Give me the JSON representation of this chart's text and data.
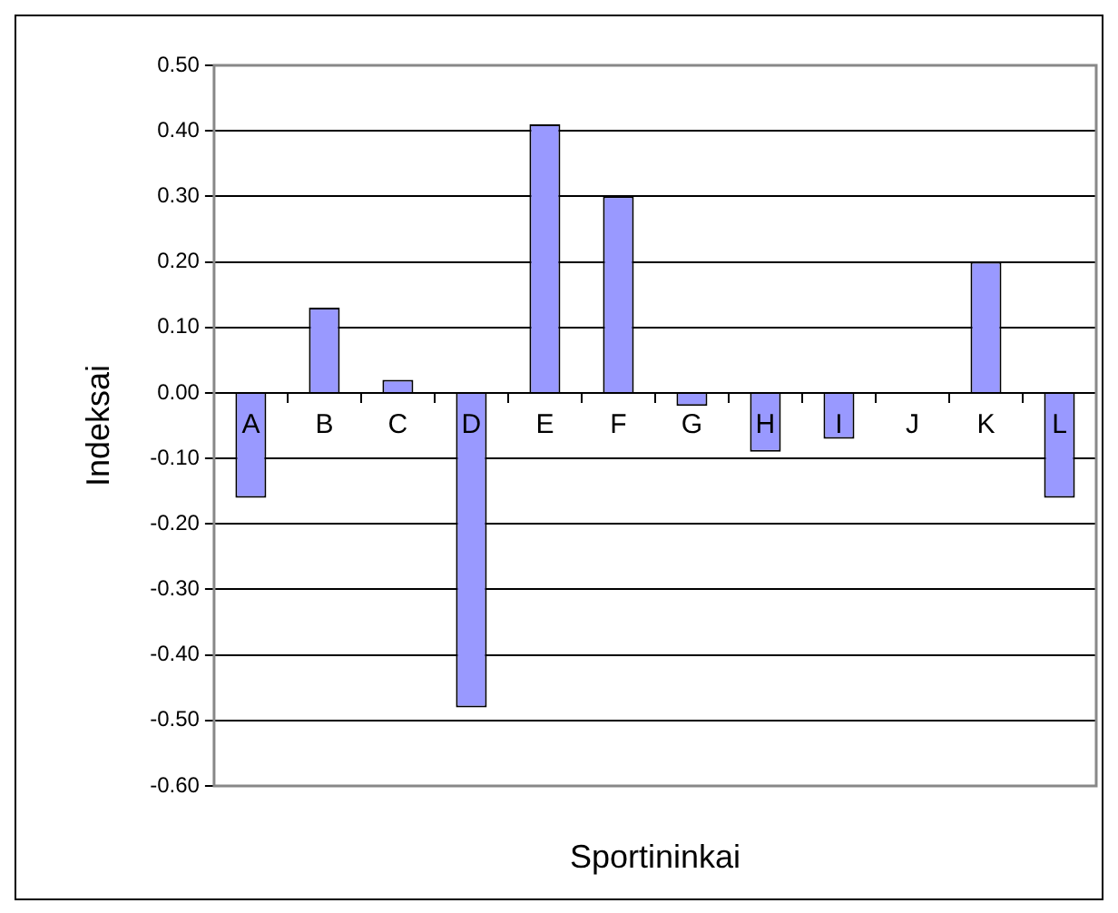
{
  "chart_data": {
    "type": "bar",
    "xlabel": "Sportininkai",
    "ylabel": "Indeksai",
    "categories": [
      "A",
      "B",
      "C",
      "D",
      "E",
      "F",
      "G",
      "H",
      "I",
      "J",
      "K",
      "L"
    ],
    "values": [
      -0.16,
      0.13,
      0.02,
      -0.48,
      0.41,
      0.3,
      -0.02,
      -0.09,
      -0.07,
      0,
      0.2,
      -0.16
    ],
    "color": "#9999ff",
    "ylim": [
      -0.6,
      0.5
    ],
    "yticks": [
      {
        "value": 0.5,
        "label": "0.50"
      },
      {
        "value": 0.4,
        "label": "0.40"
      },
      {
        "value": 0.3,
        "label": "0.30"
      },
      {
        "value": 0.2,
        "label": "0.20"
      },
      {
        "value": 0.1,
        "label": "0.10"
      },
      {
        "value": 0,
        "label": "0.00"
      },
      {
        "value": -0.1,
        "label": "-0.10"
      },
      {
        "value": -0.2,
        "label": "-0.20"
      },
      {
        "value": -0.3,
        "label": "-0.30"
      },
      {
        "value": -0.4,
        "label": "-0.40"
      },
      {
        "value": -0.5,
        "label": "-0.50"
      },
      {
        "value": -0.6,
        "label": "-0.60"
      }
    ],
    "grid": "y",
    "legend": false
  }
}
